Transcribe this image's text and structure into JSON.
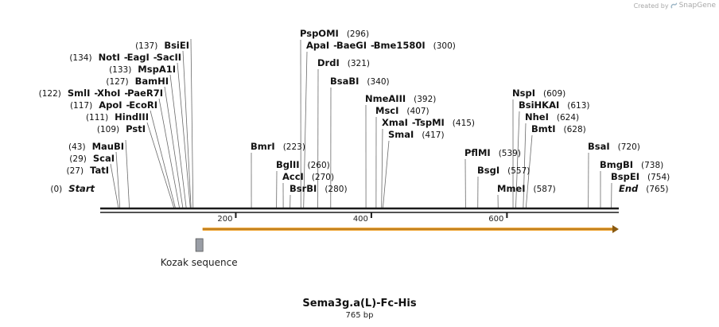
{
  "credit": {
    "created_by": "Created by",
    "brand": "SnapGene"
  },
  "title": "Sema3g.a(L)-Fc-His",
  "length_label": "765 bp",
  "sequence_length": 765,
  "colors": {
    "backbone": "#1a1a1a",
    "arrow": "#f2a93b",
    "feature_box": "#9a9ea6",
    "leader": "#6a6a6a"
  },
  "icons": {
    "brand": "snapgene-logo-icon"
  },
  "features": [
    {
      "name": "Kozak sequence",
      "start": 141,
      "end": 150,
      "type": "misc"
    },
    {
      "name": "",
      "start": 151,
      "end": 765,
      "type": "cds-arrow"
    }
  ],
  "ticks": [
    {
      "pos": 200,
      "label": "200"
    },
    {
      "pos": 400,
      "label": "400"
    },
    {
      "pos": 600,
      "label": "600"
    }
  ],
  "sites": [
    {
      "names": [
        "Start"
      ],
      "num": "(0)",
      "pos": 0,
      "italic": true,
      "side": "left"
    },
    {
      "names": [
        "TatI"
      ],
      "num": "(27)",
      "pos": 27,
      "side": "left"
    },
    {
      "names": [
        "ScaI"
      ],
      "num": "(29)",
      "pos": 29,
      "side": "left"
    },
    {
      "names": [
        "MauBI"
      ],
      "num": "(43)",
      "pos": 43,
      "side": "left"
    },
    {
      "names": [
        "PstI"
      ],
      "num": "(109)",
      "pos": 109,
      "side": "left"
    },
    {
      "names": [
        "HindIII"
      ],
      "num": "(111)",
      "pos": 111,
      "side": "left"
    },
    {
      "names": [
        "ApoI",
        "EcoRI"
      ],
      "num": "(117)",
      "pos": 117,
      "side": "left"
    },
    {
      "names": [
        "SmlI",
        "XhoI",
        "PaeR7I"
      ],
      "num": "(122)",
      "pos": 122,
      "side": "left"
    },
    {
      "names": [
        "BamHI"
      ],
      "num": "(127)",
      "pos": 127,
      "side": "left"
    },
    {
      "names": [
        "MspA1I"
      ],
      "num": "(133)",
      "pos": 133,
      "side": "left"
    },
    {
      "names": [
        "NotI",
        "EagI",
        "SacII"
      ],
      "num": "(134)",
      "pos": 134,
      "side": "left"
    },
    {
      "names": [
        "BsiEI"
      ],
      "num": "(137)",
      "pos": 137,
      "side": "left"
    },
    {
      "names": [
        "BmrI"
      ],
      "num": "(223)",
      "pos": 223,
      "side": "right"
    },
    {
      "names": [
        "BglII"
      ],
      "num": "(260)",
      "pos": 260,
      "side": "right"
    },
    {
      "names": [
        "AccI"
      ],
      "num": "(270)",
      "pos": 270,
      "side": "right"
    },
    {
      "names": [
        "BsrBI"
      ],
      "num": "(280)",
      "pos": 280,
      "side": "right"
    },
    {
      "names": [
        "PspOMI"
      ],
      "num": "(296)",
      "pos": 296,
      "side": "right"
    },
    {
      "names": [
        "ApaI",
        "BaeGI",
        "Bme1580I"
      ],
      "num": "(300)",
      "pos": 300,
      "side": "right"
    },
    {
      "names": [
        "DrdI"
      ],
      "num": "(321)",
      "pos": 321,
      "side": "right"
    },
    {
      "names": [
        "BsaBI"
      ],
      "num": "(340)",
      "pos": 340,
      "side": "right"
    },
    {
      "names": [
        "NmeAIII"
      ],
      "num": "(392)",
      "pos": 392,
      "side": "right"
    },
    {
      "names": [
        "MscI"
      ],
      "num": "(407)",
      "pos": 407,
      "side": "right"
    },
    {
      "names": [
        "XmaI",
        "TspMI"
      ],
      "num": "(415)",
      "pos": 415,
      "side": "right"
    },
    {
      "names": [
        "SmaI"
      ],
      "num": "(417)",
      "pos": 417,
      "side": "right"
    },
    {
      "names": [
        "PflMI"
      ],
      "num": "(539)",
      "pos": 539,
      "side": "right"
    },
    {
      "names": [
        "BsgI"
      ],
      "num": "(557)",
      "pos": 557,
      "side": "right"
    },
    {
      "names": [
        "MmeI"
      ],
      "num": "(587)",
      "pos": 587,
      "side": "right"
    },
    {
      "names": [
        "NspI"
      ],
      "num": "(609)",
      "pos": 609,
      "side": "right"
    },
    {
      "names": [
        "BsiHKAI"
      ],
      "num": "(613)",
      "pos": 613,
      "side": "right"
    },
    {
      "names": [
        "NheI"
      ],
      "num": "(624)",
      "pos": 624,
      "side": "right"
    },
    {
      "names": [
        "BmtI"
      ],
      "num": "(628)",
      "pos": 628,
      "side": "right"
    },
    {
      "names": [
        "BsaI"
      ],
      "num": "(720)",
      "pos": 720,
      "side": "right"
    },
    {
      "names": [
        "BmgBI"
      ],
      "num": "(738)",
      "pos": 738,
      "side": "right"
    },
    {
      "names": [
        "BspEI"
      ],
      "num": "(754)",
      "pos": 754,
      "side": "right"
    },
    {
      "names": [
        "End"
      ],
      "num": "(765)",
      "pos": 765,
      "italic": true,
      "side": "right"
    }
  ]
}
